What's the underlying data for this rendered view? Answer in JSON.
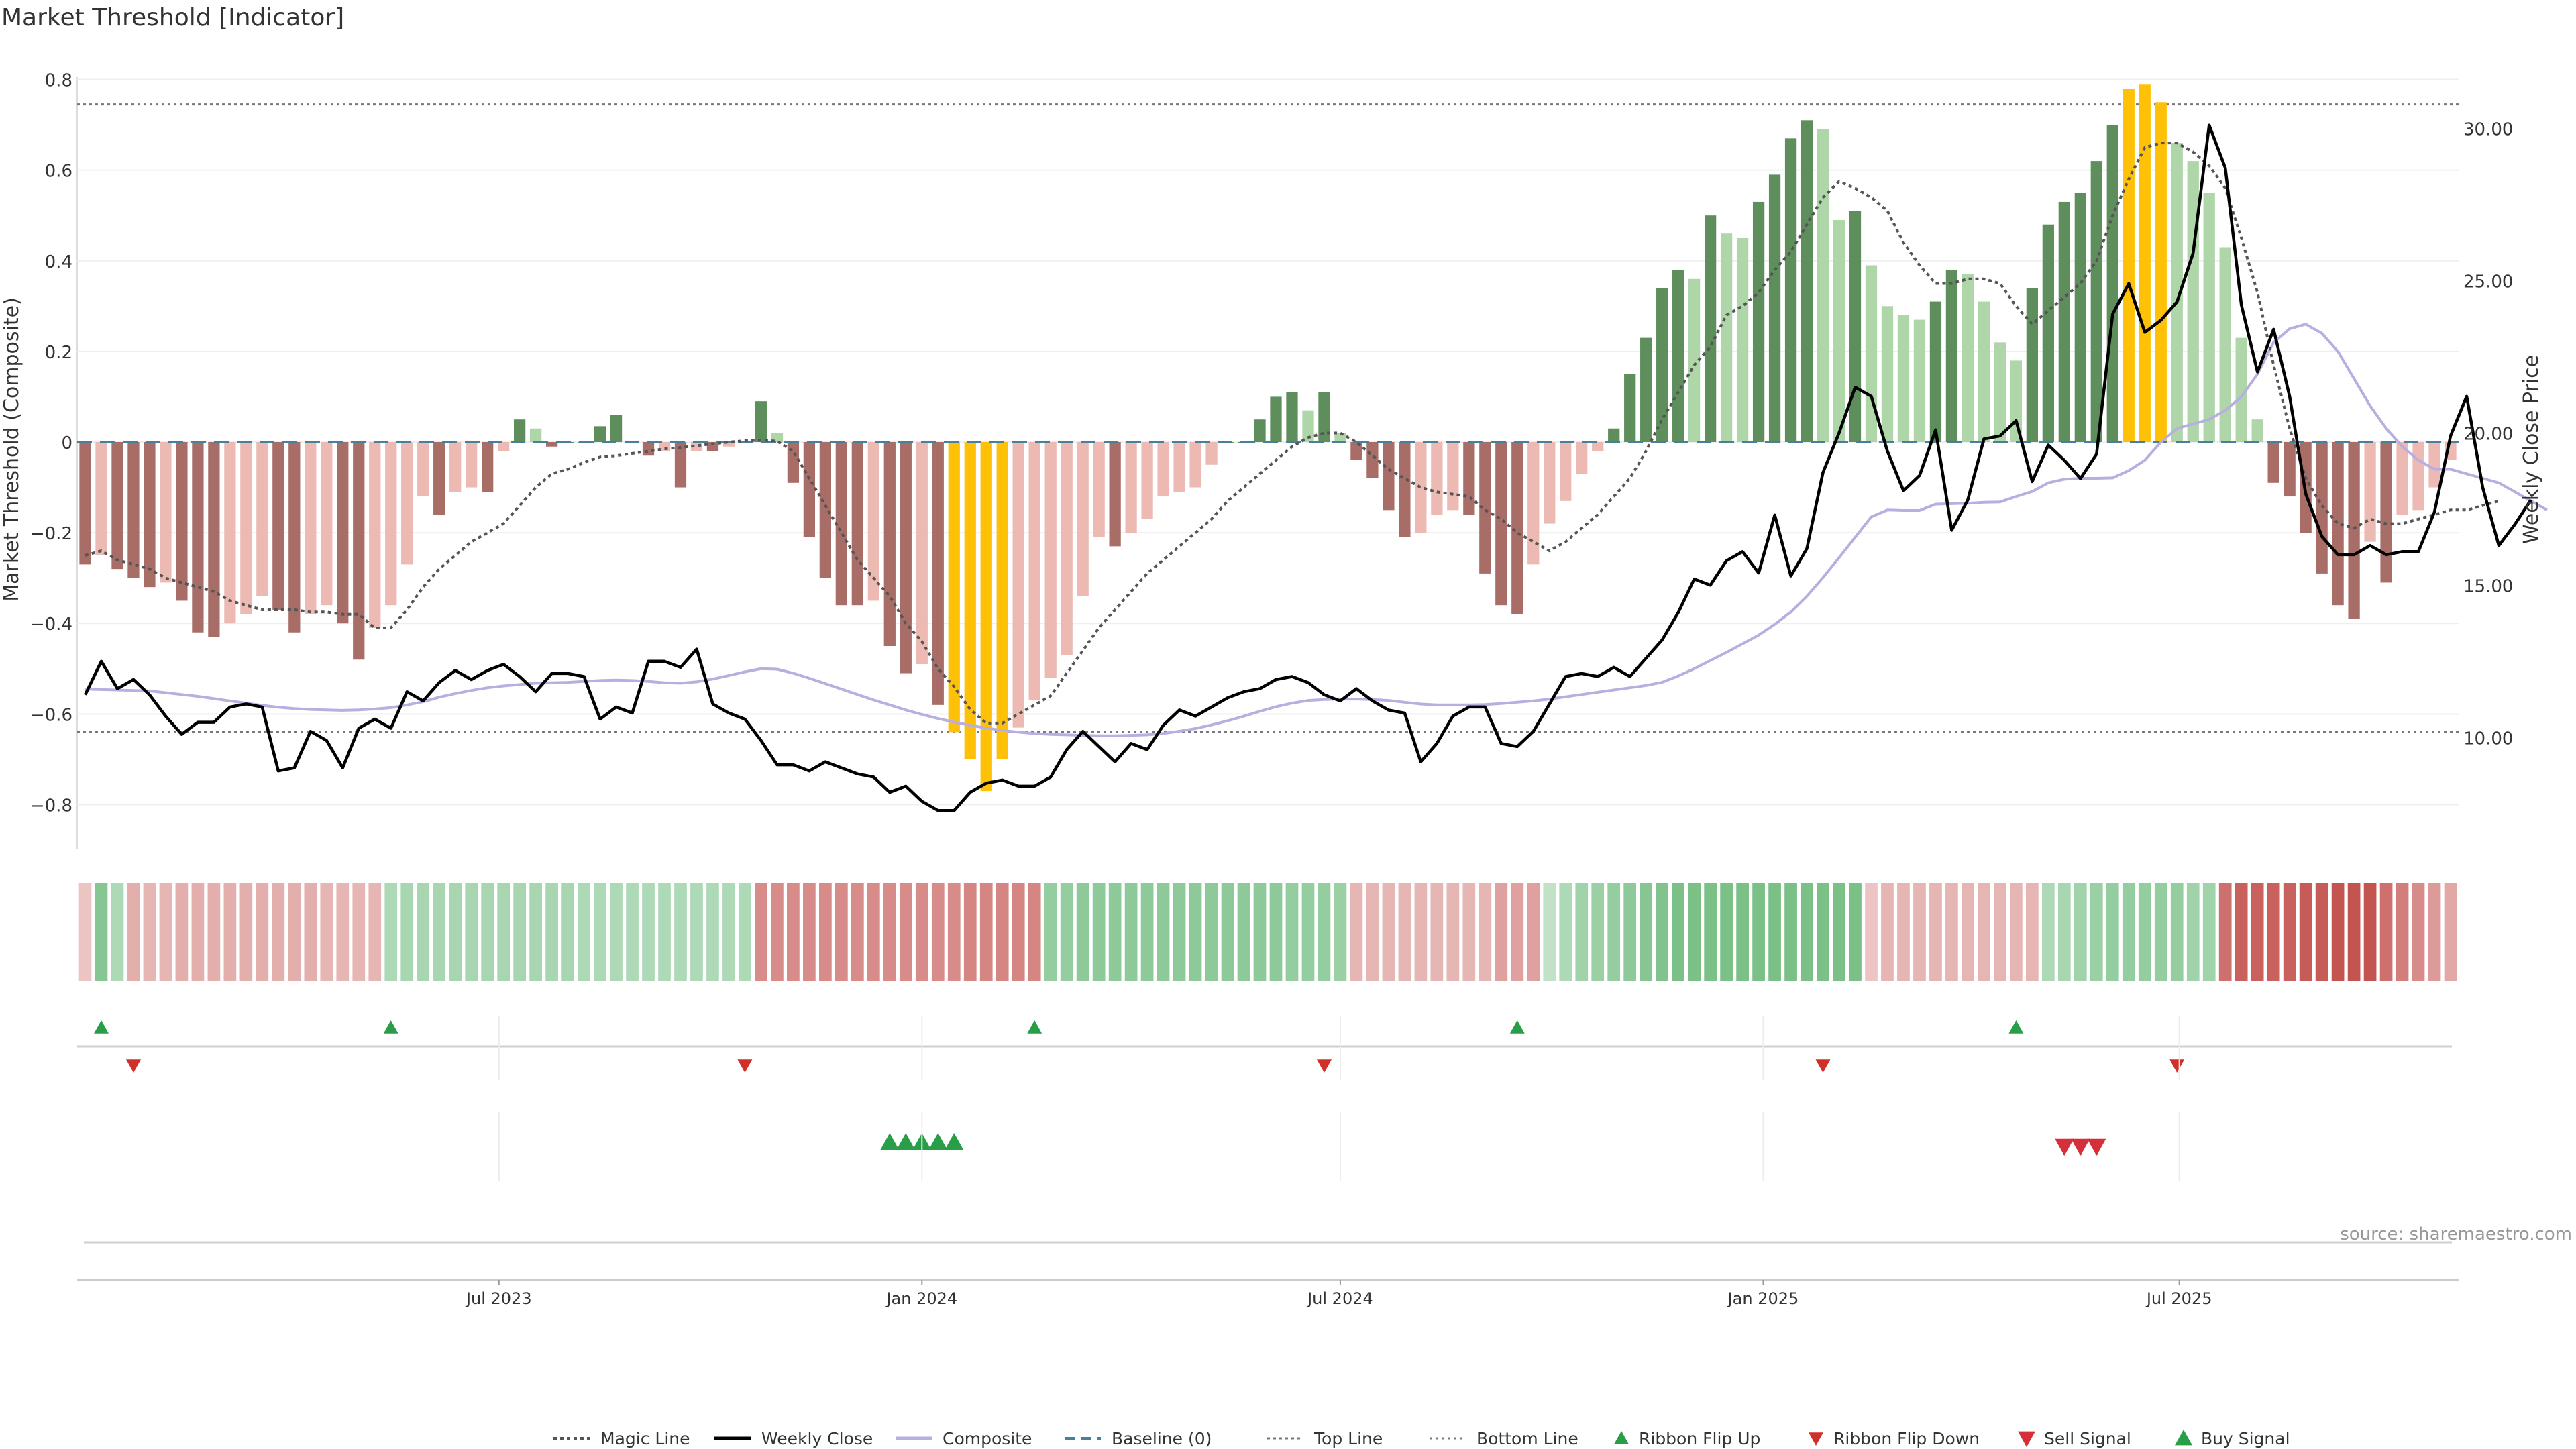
{
  "page": {
    "title": "Market Threshold [Indicator]",
    "source": "source: sharemaestro.com"
  },
  "colors": {
    "magic": "#555555",
    "close": "#000000",
    "composite": "#b9aee0",
    "baseline": "#4a7f9a",
    "guide": "#777777",
    "pos_strong": "#5e8e5c",
    "pos_weak": "#aed6a9",
    "neg_strong": "#a86d67",
    "neg_weak": "#edb9b3",
    "extreme": "#ffc107",
    "buy": "#2a9d48",
    "sell": "#d62f3a",
    "flip_down": "#d0302a"
  },
  "chart_data": {
    "type": "bar",
    "x_start": "2023-01-02",
    "x_step_days": 7,
    "xticks": [
      {
        "date": "2023-07-01",
        "label": "Jul 2023"
      },
      {
        "date": "2024-01-01",
        "label": "Jan 2024"
      },
      {
        "date": "2024-07-01",
        "label": "Jul 2024"
      },
      {
        "date": "2025-01-01",
        "label": "Jan 2025"
      },
      {
        "date": "2025-07-01",
        "label": "Jul 2025"
      }
    ],
    "ylabel": "Market Threshold (Composite)",
    "ylim": [
      -0.86,
      0.82
    ],
    "yticks": [
      0.8,
      0.6,
      0.4,
      0.2,
      0,
      -0.2,
      -0.4,
      -0.6,
      -0.8
    ],
    "ytick_labels": [
      "0.8",
      "0.6",
      "0.4",
      "0.2",
      "0",
      "−0.2",
      "−0.4",
      "−0.6",
      "−0.8"
    ],
    "y2label": "Weekly Close Price",
    "y2lim": [
      6.9,
      31.9
    ],
    "y2ticks": [
      30,
      25,
      20,
      15,
      10
    ],
    "y2tick_labels": [
      "30.00",
      "25.00",
      "20.00",
      "15.00",
      "10.00"
    ],
    "top_line": 0.745,
    "bottom_line": -0.64,
    "baseline": 0,
    "composite_bars": [
      -0.27,
      -0.25,
      -0.28,
      -0.3,
      -0.32,
      -0.31,
      -0.35,
      -0.42,
      -0.43,
      -0.4,
      -0.38,
      -0.34,
      -0.37,
      -0.42,
      -0.38,
      -0.36,
      -0.4,
      -0.48,
      -0.41,
      -0.36,
      -0.27,
      -0.12,
      -0.16,
      -0.11,
      -0.1,
      -0.11,
      -0.02,
      0.05,
      0.03,
      -0.01,
      0.0,
      0.0,
      0.035,
      0.06,
      0.0,
      -0.03,
      -0.02,
      -0.1,
      -0.02,
      -0.02,
      -0.01,
      0.0,
      0.09,
      0.02,
      -0.09,
      -0.21,
      -0.3,
      -0.36,
      -0.36,
      -0.35,
      -0.45,
      -0.51,
      -0.49,
      -0.58,
      -0.64,
      -0.7,
      -0.77,
      -0.7,
      -0.63,
      -0.57,
      -0.52,
      -0.47,
      -0.34,
      -0.21,
      -0.23,
      -0.2,
      -0.17,
      -0.12,
      -0.11,
      -0.1,
      -0.05,
      0.0,
      0.0,
      0.05,
      0.1,
      0.11,
      0.07,
      0.11,
      0.02,
      -0.04,
      -0.08,
      -0.15,
      -0.21,
      -0.2,
      -0.16,
      -0.15,
      -0.16,
      -0.29,
      -0.36,
      -0.38,
      -0.27,
      -0.18,
      -0.13,
      -0.07,
      -0.02,
      0.03,
      0.15,
      0.23,
      0.34,
      0.38,
      0.36,
      0.5,
      0.46,
      0.45,
      0.53,
      0.59,
      0.67,
      0.71,
      0.69,
      0.49,
      0.51,
      0.39,
      0.3,
      0.28,
      0.27,
      0.31,
      0.38,
      0.37,
      0.31,
      0.22,
      0.18,
      0.34,
      0.48,
      0.53,
      0.55,
      0.62,
      0.7,
      0.78,
      0.79,
      0.75,
      0.66,
      0.62,
      0.55,
      0.43,
      0.23,
      0.05,
      -0.09,
      -0.12,
      -0.2,
      -0.29,
      -0.36,
      -0.39,
      -0.22,
      -0.31,
      -0.16,
      -0.15,
      -0.1,
      -0.04
    ],
    "weekly_close": [
      11.4,
      12.5,
      11.6,
      11.9,
      11.4,
      10.7,
      10.1,
      10.5,
      10.5,
      11.0,
      11.1,
      11.0,
      8.9,
      9.0,
      10.2,
      9.9,
      9.0,
      10.3,
      10.6,
      10.3,
      11.5,
      11.2,
      11.8,
      12.2,
      11.9,
      12.2,
      12.4,
      12.0,
      11.5,
      12.1,
      12.1,
      12.0,
      10.6,
      11.0,
      10.8,
      12.5,
      12.5,
      12.3,
      12.9,
      11.1,
      10.8,
      10.6,
      9.9,
      9.1,
      9.1,
      8.9,
      9.2,
      9.0,
      8.8,
      8.7,
      8.2,
      8.4,
      7.9,
      7.6,
      7.6,
      8.2,
      8.5,
      8.6,
      8.4,
      8.4,
      8.7,
      9.6,
      10.2,
      9.7,
      9.2,
      9.8,
      9.6,
      10.4,
      10.9,
      10.7,
      11.0,
      11.3,
      11.5,
      11.6,
      11.9,
      12.0,
      11.8,
      11.4,
      11.2,
      11.6,
      11.2,
      10.9,
      10.8,
      9.2,
      9.8,
      10.7,
      11.0,
      11.0,
      9.8,
      9.7,
      10.2,
      11.1,
      12.0,
      12.1,
      12.0,
      12.3,
      12.0,
      12.6,
      13.2,
      14.1,
      15.2,
      15.0,
      15.8,
      16.1,
      15.4,
      17.3,
      15.3,
      16.2,
      18.7,
      20.0,
      21.5,
      21.2,
      19.4,
      18.1,
      18.6,
      20.1,
      16.8,
      17.8,
      19.8,
      19.9,
      20.4,
      18.4,
      19.6,
      19.1,
      18.5,
      19.3,
      23.9,
      24.9,
      23.3,
      23.7,
      24.3,
      25.9,
      30.1,
      28.7,
      24.2,
      22.0,
      23.4,
      21.2,
      18.0,
      16.6,
      16.0,
      16.0,
      16.3,
      16.0,
      16.1,
      16.1,
      17.4,
      19.9,
      21.2,
      18.2,
      16.3,
      17.0,
      17.8
    ],
    "composite_line": [
      -0.545,
      -0.546,
      -0.547,
      -0.548,
      -0.549,
      -0.553,
      -0.557,
      -0.561,
      -0.566,
      -0.571,
      -0.576,
      -0.581,
      -0.585,
      -0.588,
      -0.59,
      -0.591,
      -0.592,
      -0.591,
      -0.589,
      -0.586,
      -0.58,
      -0.573,
      -0.563,
      -0.555,
      -0.548,
      -0.542,
      -0.538,
      -0.535,
      -0.532,
      -0.531,
      -0.53,
      -0.528,
      -0.526,
      -0.525,
      -0.526,
      -0.528,
      -0.531,
      -0.532,
      -0.529,
      -0.523,
      -0.515,
      -0.507,
      -0.5,
      -0.501,
      -0.51,
      -0.521,
      -0.533,
      -0.545,
      -0.557,
      -0.569,
      -0.58,
      -0.591,
      -0.601,
      -0.61,
      -0.618,
      -0.625,
      -0.631,
      -0.636,
      -0.64,
      -0.643,
      -0.645,
      -0.646,
      -0.647,
      -0.648,
      -0.648,
      -0.647,
      -0.646,
      -0.643,
      -0.638,
      -0.632,
      -0.624,
      -0.615,
      -0.605,
      -0.594,
      -0.584,
      -0.576,
      -0.57,
      -0.568,
      -0.567,
      -0.567,
      -0.568,
      -0.57,
      -0.574,
      -0.578,
      -0.58,
      -0.58,
      -0.58,
      -0.579,
      -0.577,
      -0.574,
      -0.571,
      -0.567,
      -0.562,
      -0.557,
      -0.552,
      -0.547,
      -0.542,
      -0.537,
      -0.53,
      -0.516,
      -0.5,
      -0.482,
      -0.464,
      -0.445,
      -0.426,
      -0.402,
      -0.375,
      -0.34,
      -0.299,
      -0.255,
      -0.21,
      -0.165,
      -0.15,
      -0.151,
      -0.151,
      -0.137,
      -0.136,
      -0.135,
      -0.133,
      -0.132,
      -0.12,
      -0.109,
      -0.09,
      -0.082,
      -0.08,
      -0.08,
      -0.079,
      -0.063,
      -0.04,
      0.0,
      0.03,
      0.04,
      0.05,
      0.07,
      0.1,
      0.15,
      0.22,
      0.25,
      0.26,
      0.24,
      0.2,
      0.14,
      0.08,
      0.03,
      -0.01,
      -0.04,
      -0.06,
      -0.06,
      -0.07,
      -0.08,
      -0.09,
      -0.11,
      -0.13,
      -0.15
    ],
    "magic_line": [
      -0.25,
      -0.24,
      -0.26,
      -0.27,
      -0.28,
      -0.3,
      -0.31,
      -0.32,
      -0.33,
      -0.35,
      -0.36,
      -0.37,
      -0.37,
      -0.37,
      -0.375,
      -0.375,
      -0.38,
      -0.38,
      -0.41,
      -0.41,
      -0.37,
      -0.32,
      -0.28,
      -0.25,
      -0.22,
      -0.2,
      -0.18,
      -0.14,
      -0.1,
      -0.07,
      -0.06,
      -0.045,
      -0.033,
      -0.03,
      -0.025,
      -0.02,
      -0.015,
      -0.012,
      -0.008,
      -0.004,
      0.0,
      0.003,
      0.004,
      0.002,
      -0.02,
      -0.08,
      -0.14,
      -0.2,
      -0.26,
      -0.3,
      -0.34,
      -0.4,
      -0.44,
      -0.5,
      -0.54,
      -0.59,
      -0.62,
      -0.62,
      -0.6,
      -0.58,
      -0.56,
      -0.51,
      -0.46,
      -0.41,
      -0.37,
      -0.33,
      -0.29,
      -0.26,
      -0.23,
      -0.2,
      -0.17,
      -0.13,
      -0.1,
      -0.07,
      -0.04,
      -0.01,
      0.01,
      0.02,
      0.02,
      0.0,
      -0.03,
      -0.06,
      -0.08,
      -0.1,
      -0.11,
      -0.115,
      -0.12,
      -0.15,
      -0.17,
      -0.2,
      -0.22,
      -0.24,
      -0.22,
      -0.19,
      -0.16,
      -0.12,
      -0.08,
      -0.02,
      0.05,
      0.11,
      0.17,
      0.21,
      0.28,
      0.3,
      0.33,
      0.38,
      0.42,
      0.48,
      0.54,
      0.575,
      0.56,
      0.54,
      0.51,
      0.44,
      0.39,
      0.35,
      0.35,
      0.36,
      0.36,
      0.35,
      0.3,
      0.26,
      0.29,
      0.32,
      0.35,
      0.4,
      0.5,
      0.58,
      0.65,
      0.66,
      0.66,
      0.64,
      0.61,
      0.56,
      0.45,
      0.33,
      0.17,
      0.03,
      -0.08,
      -0.14,
      -0.18,
      -0.19,
      -0.17,
      -0.18,
      -0.18,
      -0.17,
      -0.16,
      -0.15,
      -0.15,
      -0.14,
      -0.13
    ],
    "ribbon": [
      -0.2,
      0.7,
      0.4,
      -0.35,
      -0.3,
      -0.3,
      -0.35,
      -0.35,
      -0.35,
      -0.35,
      -0.35,
      -0.35,
      -0.35,
      -0.35,
      -0.35,
      -0.3,
      -0.3,
      -0.3,
      -0.3,
      0.4,
      0.45,
      0.45,
      0.45,
      0.45,
      0.45,
      0.45,
      0.45,
      0.45,
      0.45,
      0.45,
      0.45,
      0.4,
      0.4,
      0.4,
      0.4,
      0.4,
      0.4,
      0.4,
      0.4,
      0.4,
      0.4,
      0.4,
      -0.6,
      -0.6,
      -0.6,
      -0.6,
      -0.6,
      -0.6,
      -0.6,
      -0.6,
      -0.6,
      -0.6,
      -0.6,
      -0.6,
      -0.6,
      -0.65,
      -0.65,
      -0.65,
      -0.65,
      -0.65,
      0.6,
      0.6,
      0.65,
      0.65,
      0.65,
      0.65,
      0.65,
      0.65,
      0.65,
      0.65,
      0.65,
      0.65,
      0.65,
      0.65,
      0.65,
      0.6,
      0.6,
      0.6,
      0.55,
      -0.3,
      -0.3,
      -0.3,
      -0.3,
      -0.3,
      -0.3,
      -0.3,
      -0.3,
      -0.3,
      -0.45,
      -0.45,
      -0.45,
      0.25,
      0.4,
      0.5,
      0.55,
      0.6,
      0.65,
      0.7,
      0.75,
      0.8,
      0.8,
      0.8,
      0.8,
      0.8,
      0.8,
      0.8,
      0.8,
      0.8,
      0.8,
      0.8,
      0.8,
      -0.2,
      -0.3,
      -0.3,
      -0.3,
      -0.3,
      -0.3,
      -0.3,
      -0.3,
      -0.3,
      -0.3,
      -0.3,
      0.4,
      0.45,
      0.5,
      0.55,
      0.6,
      0.6,
      0.6,
      0.6,
      0.6,
      0.5,
      0.5,
      -0.8,
      -0.9,
      -0.9,
      -0.9,
      -0.9,
      -0.95,
      -0.95,
      -1.0,
      -1.0,
      -1.0,
      -0.8,
      -0.7,
      -0.6,
      -0.5,
      -0.4
    ],
    "ribbon_flip_up": [
      1,
      19,
      59,
      89,
      120
    ],
    "ribbon_flip_down": [
      3,
      41,
      77,
      108,
      130
    ],
    "buy_signal": [
      50,
      51,
      52,
      53,
      54
    ],
    "sell_signal": [
      123,
      124,
      125
    ],
    "legend": [
      "Magic Line",
      "Weekly Close",
      "Composite",
      "Baseline (0)",
      "Top Line",
      "Bottom Line",
      "Ribbon Flip Up",
      "Ribbon Flip Down",
      "Sell Signal",
      "Buy Signal"
    ],
    "legend_placement": "bottom-center"
  }
}
